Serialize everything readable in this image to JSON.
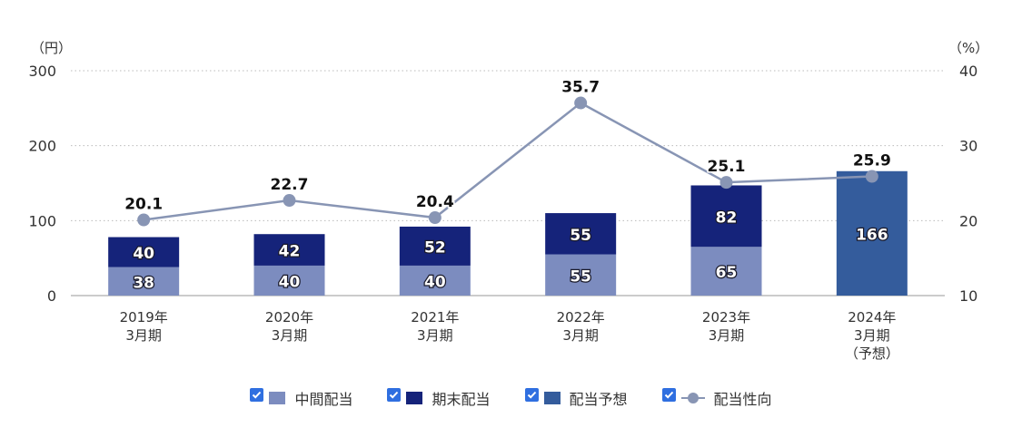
{
  "colors": {
    "interim": "#7c8cbf",
    "yearend": "#15237a",
    "forecast": "#345c9c",
    "payout": "#8895b4",
    "checkbox": "#2f6fe0"
  },
  "legend": {
    "interim": "中間配当",
    "yearend": "期末配当",
    "forecast": "配当予想",
    "payout": "配当性向"
  },
  "chart_data": {
    "type": "bar",
    "stacked": true,
    "categories": [
      [
        "2019年",
        "3月期"
      ],
      [
        "2020年",
        "3月期"
      ],
      [
        "2021年",
        "3月期"
      ],
      [
        "2022年",
        "3月期"
      ],
      [
        "2023年",
        "3月期"
      ],
      [
        "2024年",
        "3月期",
        "（予想）"
      ]
    ],
    "series": [
      {
        "name": "中間配当",
        "kind": "bar",
        "axis": "left",
        "values": [
          38,
          40,
          40,
          55,
          65,
          null
        ]
      },
      {
        "name": "期末配当",
        "kind": "bar",
        "axis": "left",
        "values": [
          40,
          42,
          52,
          55,
          82,
          null
        ]
      },
      {
        "name": "配当予想",
        "kind": "bar",
        "axis": "left",
        "values": [
          null,
          null,
          null,
          null,
          null,
          166
        ]
      },
      {
        "name": "配当性向",
        "kind": "line",
        "axis": "right",
        "values": [
          20.1,
          22.7,
          20.4,
          35.7,
          25.1,
          25.9
        ]
      }
    ],
    "y_left": {
      "unit": "（円）",
      "range": [
        0,
        300
      ],
      "ticks": [
        0,
        100,
        200,
        300
      ]
    },
    "y_right": {
      "unit": "（%）",
      "range": [
        10,
        40
      ],
      "ticks": [
        10,
        20,
        30,
        40
      ]
    },
    "grid": "dotted horizontal",
    "legend_position": "bottom"
  }
}
